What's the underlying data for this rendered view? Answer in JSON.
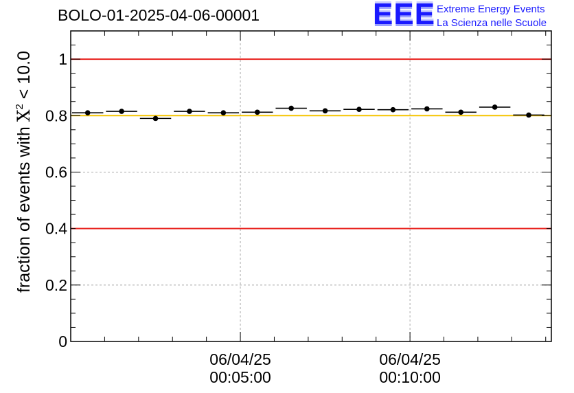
{
  "header": {
    "run_title": "BOLO-01-2025-04-06-00001",
    "logo_mark": "EEE",
    "logo_line1": "Extreme Energy Events",
    "logo_line2": "La Scienza nelle Scuole"
  },
  "chart_data": {
    "type": "scatter",
    "title": "BOLO-01-2025-04-06-00001",
    "xlabel": "",
    "ylabel": "fraction of events with χ² < 10.0",
    "ylabel_parts": {
      "prefix": "fraction of events with ",
      "symbol": "X",
      "superscript": "2",
      "suffix": " < 10.0"
    },
    "ylim": [
      0,
      1.1
    ],
    "xlim_seconds": [
      0,
      850
    ],
    "x_unit": "seconds from 06/04/25 00:00:00",
    "y_ticks": [
      {
        "value": 0,
        "label": "0"
      },
      {
        "value": 0.2,
        "label": "0.2"
      },
      {
        "value": 0.4,
        "label": "0.4"
      },
      {
        "value": 0.6,
        "label": "0.6"
      },
      {
        "value": 0.8,
        "label": "0.8"
      },
      {
        "value": 1.0,
        "label": "1"
      }
    ],
    "x_ticks": [
      {
        "value": 300,
        "date": "06/04/25",
        "time": "00:05:00"
      },
      {
        "value": 600,
        "date": "06/04/25",
        "time": "00:10:00"
      }
    ],
    "grid": true,
    "bin_width_seconds": 60,
    "points": [
      {
        "x": 30,
        "y": 0.81
      },
      {
        "x": 90,
        "y": 0.815
      },
      {
        "x": 150,
        "y": 0.79
      },
      {
        "x": 210,
        "y": 0.815
      },
      {
        "x": 270,
        "y": 0.81
      },
      {
        "x": 330,
        "y": 0.812
      },
      {
        "x": 390,
        "y": 0.826
      },
      {
        "x": 450,
        "y": 0.817
      },
      {
        "x": 510,
        "y": 0.822
      },
      {
        "x": 570,
        "y": 0.821
      },
      {
        "x": 630,
        "y": 0.824
      },
      {
        "x": 690,
        "y": 0.812
      },
      {
        "x": 750,
        "y": 0.83
      },
      {
        "x": 810,
        "y": 0.802
      }
    ],
    "reference_lines": [
      {
        "y": 1.0,
        "color": "#e8201c"
      },
      {
        "y": 0.4,
        "color": "#e8201c"
      },
      {
        "y": 0.8,
        "color": "#f5c400"
      }
    ],
    "colors": {
      "points": "#000000",
      "grid": "#aaaaaa"
    }
  }
}
